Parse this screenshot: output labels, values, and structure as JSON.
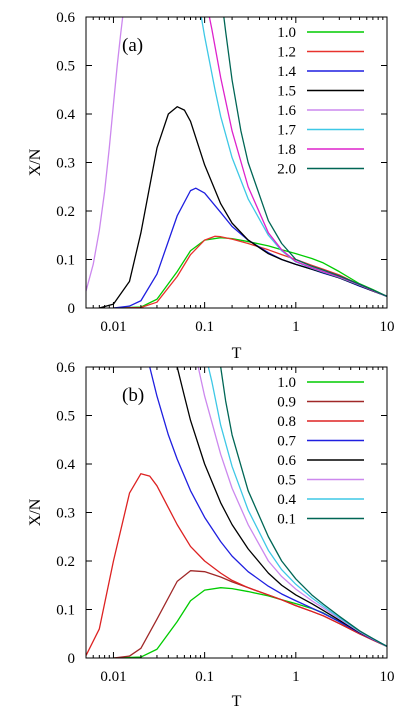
{
  "chart_data": [
    {
      "type": "line",
      "panel_label": "(a)",
      "xlabel": "T",
      "ylabel": "X/N",
      "xscale": "log",
      "xlim": [
        0.005,
        10
      ],
      "ylim": [
        0,
        0.6
      ],
      "xticks": [
        0.01,
        0.1,
        1,
        10
      ],
      "xtick_labels": [
        "0.01",
        "0.1",
        "1",
        "10"
      ],
      "yticks": [
        0,
        0.1,
        0.2,
        0.3,
        0.4,
        0.5,
        0.6
      ],
      "ytick_labels": [
        "0",
        "0.1",
        "0.2",
        "0.3",
        "0.4",
        "0.5",
        "0.6"
      ],
      "grid": false,
      "legend_position": "top-right",
      "series": [
        {
          "name": "1.0",
          "color": "#00cc00",
          "x": [
            0.01,
            0.02,
            0.03,
            0.05,
            0.07,
            0.1,
            0.15,
            0.2,
            0.3,
            0.5,
            0.7,
            1,
            1.5,
            2,
            3,
            5,
            7,
            10
          ],
          "y": [
            0.0,
            0.002,
            0.018,
            0.075,
            0.118,
            0.14,
            0.145,
            0.143,
            0.137,
            0.128,
            0.12,
            0.112,
            0.102,
            0.093,
            0.075,
            0.05,
            0.038,
            0.024
          ]
        },
        {
          "name": "1.2",
          "color": "#e8322d",
          "x": [
            0.01,
            0.02,
            0.03,
            0.05,
            0.07,
            0.1,
            0.13,
            0.15,
            0.2,
            0.3,
            0.5,
            0.7,
            1,
            1.5,
            2,
            3,
            5,
            7,
            10
          ],
          "y": [
            0.0,
            0.001,
            0.012,
            0.065,
            0.11,
            0.14,
            0.148,
            0.147,
            0.142,
            0.133,
            0.12,
            0.11,
            0.1,
            0.088,
            0.08,
            0.068,
            0.048,
            0.036,
            0.024
          ]
        },
        {
          "name": "1.4",
          "color": "#1f1fe0",
          "x": [
            0.01,
            0.015,
            0.02,
            0.03,
            0.05,
            0.07,
            0.08,
            0.1,
            0.15,
            0.2,
            0.3,
            0.5,
            0.7,
            1,
            1.5,
            2,
            3,
            5,
            7,
            10
          ],
          "y": [
            0.0,
            0.004,
            0.015,
            0.07,
            0.19,
            0.242,
            0.247,
            0.237,
            0.197,
            0.168,
            0.14,
            0.114,
            0.1,
            0.09,
            0.08,
            0.072,
            0.062,
            0.045,
            0.035,
            0.024
          ]
        },
        {
          "name": "1.5",
          "color": "#000000",
          "x": [
            0.007,
            0.01,
            0.015,
            0.02,
            0.03,
            0.04,
            0.05,
            0.06,
            0.07,
            0.1,
            0.15,
            0.2,
            0.3,
            0.5,
            0.7,
            1,
            1.5,
            2,
            3,
            5,
            7,
            10
          ],
          "y": [
            0.0,
            0.008,
            0.055,
            0.155,
            0.33,
            0.4,
            0.415,
            0.408,
            0.385,
            0.295,
            0.215,
            0.175,
            0.14,
            0.112,
            0.1,
            0.09,
            0.08,
            0.073,
            0.062,
            0.046,
            0.035,
            0.024
          ]
        },
        {
          "name": "1.6",
          "color": "#cc88ee",
          "x": [
            0.005,
            0.006,
            0.007,
            0.008,
            0.009,
            0.01,
            0.011,
            0.012,
            0.013
          ],
          "y": [
            0.035,
            0.09,
            0.16,
            0.24,
            0.33,
            0.42,
            0.5,
            0.565,
            0.62
          ]
        },
        {
          "name": "1.7",
          "color": "#3ec8e6",
          "x": [
            0.09,
            0.1,
            0.13,
            0.15,
            0.2,
            0.3,
            0.5,
            0.7,
            1,
            1.5,
            2,
            3,
            5,
            7,
            10
          ],
          "y": [
            0.61,
            0.56,
            0.45,
            0.395,
            0.31,
            0.225,
            0.15,
            0.118,
            0.095,
            0.082,
            0.074,
            0.063,
            0.047,
            0.036,
            0.024
          ]
        },
        {
          "name": "1.8",
          "color": "#dd22cc",
          "x": [
            0.11,
            0.12,
            0.15,
            0.2,
            0.3,
            0.5,
            0.7,
            1,
            1.5,
            2,
            3,
            5,
            7,
            10
          ],
          "y": [
            0.61,
            0.575,
            0.475,
            0.365,
            0.25,
            0.155,
            0.12,
            0.096,
            0.083,
            0.075,
            0.064,
            0.048,
            0.036,
            0.024
          ]
        },
        {
          "name": "2.0",
          "color": "#006655",
          "x": [
            0.16,
            0.17,
            0.2,
            0.25,
            0.3,
            0.5,
            0.7,
            1,
            1.5,
            2,
            3,
            5,
            7,
            10
          ],
          "y": [
            0.61,
            0.57,
            0.47,
            0.365,
            0.3,
            0.18,
            0.133,
            0.1,
            0.086,
            0.078,
            0.066,
            0.049,
            0.037,
            0.024
          ]
        }
      ]
    },
    {
      "type": "line",
      "panel_label": "(b)",
      "xlabel": "T",
      "ylabel": "X/N",
      "xscale": "log",
      "xlim": [
        0.005,
        10
      ],
      "ylim": [
        0,
        0.6
      ],
      "xticks": [
        0.01,
        0.1,
        1,
        10
      ],
      "xtick_labels": [
        "0.01",
        "0.1",
        "1",
        "10"
      ],
      "yticks": [
        0,
        0.1,
        0.2,
        0.3,
        0.4,
        0.5,
        0.6
      ],
      "ytick_labels": [
        "0",
        "0.1",
        "0.2",
        "0.3",
        "0.4",
        "0.5",
        "0.6"
      ],
      "grid": false,
      "legend_position": "top-right",
      "series": [
        {
          "name": "1.0",
          "color": "#00cc00",
          "x": [
            0.01,
            0.02,
            0.03,
            0.05,
            0.07,
            0.1,
            0.15,
            0.2,
            0.3,
            0.5,
            0.7,
            1,
            1.5,
            2,
            3,
            5,
            7,
            10
          ],
          "y": [
            0.0,
            0.002,
            0.018,
            0.075,
            0.118,
            0.14,
            0.145,
            0.143,
            0.137,
            0.128,
            0.12,
            0.112,
            0.102,
            0.093,
            0.075,
            0.05,
            0.038,
            0.024
          ]
        },
        {
          "name": "0.9",
          "color": "#a02828",
          "x": [
            0.01,
            0.015,
            0.02,
            0.03,
            0.05,
            0.07,
            0.1,
            0.15,
            0.2,
            0.3,
            0.5,
            0.7,
            1,
            1.5,
            2,
            3,
            5,
            7,
            10
          ],
          "y": [
            0.0,
            0.004,
            0.02,
            0.08,
            0.158,
            0.18,
            0.178,
            0.167,
            0.157,
            0.145,
            0.13,
            0.12,
            0.108,
            0.096,
            0.087,
            0.071,
            0.05,
            0.037,
            0.024
          ]
        },
        {
          "name": "0.8",
          "color": "#dd2222",
          "x": [
            0.005,
            0.007,
            0.01,
            0.015,
            0.02,
            0.025,
            0.03,
            0.04,
            0.05,
            0.07,
            0.1,
            0.15,
            0.2,
            0.3,
            0.5,
            0.7,
            1,
            1.5,
            2,
            3,
            5,
            7,
            10
          ],
          "y": [
            0.005,
            0.06,
            0.2,
            0.34,
            0.38,
            0.375,
            0.355,
            0.31,
            0.275,
            0.23,
            0.2,
            0.175,
            0.16,
            0.145,
            0.13,
            0.12,
            0.108,
            0.096,
            0.087,
            0.071,
            0.05,
            0.037,
            0.024
          ]
        },
        {
          "name": "0.7",
          "color": "#1f1fe0",
          "x": [
            0.025,
            0.03,
            0.04,
            0.05,
            0.07,
            0.1,
            0.15,
            0.2,
            0.3,
            0.5,
            0.7,
            1,
            1.5,
            2,
            3,
            5,
            7,
            10
          ],
          "y": [
            0.6,
            0.54,
            0.46,
            0.41,
            0.345,
            0.29,
            0.24,
            0.21,
            0.178,
            0.148,
            0.132,
            0.118,
            0.103,
            0.092,
            0.075,
            0.052,
            0.038,
            0.024
          ]
        },
        {
          "name": "0.6",
          "color": "#000000",
          "x": [
            0.05,
            0.06,
            0.07,
            0.1,
            0.15,
            0.2,
            0.3,
            0.5,
            0.7,
            1,
            1.5,
            2,
            3,
            5,
            7,
            10
          ],
          "y": [
            0.6,
            0.54,
            0.49,
            0.4,
            0.32,
            0.275,
            0.225,
            0.175,
            0.15,
            0.13,
            0.112,
            0.098,
            0.078,
            0.053,
            0.039,
            0.024
          ]
        },
        {
          "name": "0.5",
          "color": "#cc88ee",
          "x": [
            0.085,
            0.1,
            0.15,
            0.2,
            0.3,
            0.5,
            0.7,
            1,
            1.5,
            2,
            3,
            5,
            7,
            10
          ],
          "y": [
            0.6,
            0.54,
            0.42,
            0.35,
            0.275,
            0.2,
            0.168,
            0.142,
            0.118,
            0.103,
            0.081,
            0.054,
            0.039,
            0.024
          ]
        },
        {
          "name": "0.4",
          "color": "#3ec8e6",
          "x": [
            0.11,
            0.12,
            0.15,
            0.2,
            0.3,
            0.5,
            0.7,
            1,
            1.5,
            2,
            3,
            5,
            7,
            10
          ],
          "y": [
            0.6,
            0.57,
            0.48,
            0.395,
            0.305,
            0.222,
            0.182,
            0.152,
            0.124,
            0.107,
            0.083,
            0.055,
            0.04,
            0.024
          ]
        },
        {
          "name": "0.1",
          "color": "#006655",
          "x": [
            0.15,
            0.17,
            0.2,
            0.3,
            0.5,
            0.7,
            1,
            1.5,
            2,
            3,
            5,
            7,
            10
          ],
          "y": [
            0.6,
            0.53,
            0.46,
            0.345,
            0.25,
            0.2,
            0.163,
            0.13,
            0.111,
            0.086,
            0.056,
            0.04,
            0.024
          ]
        }
      ]
    }
  ]
}
